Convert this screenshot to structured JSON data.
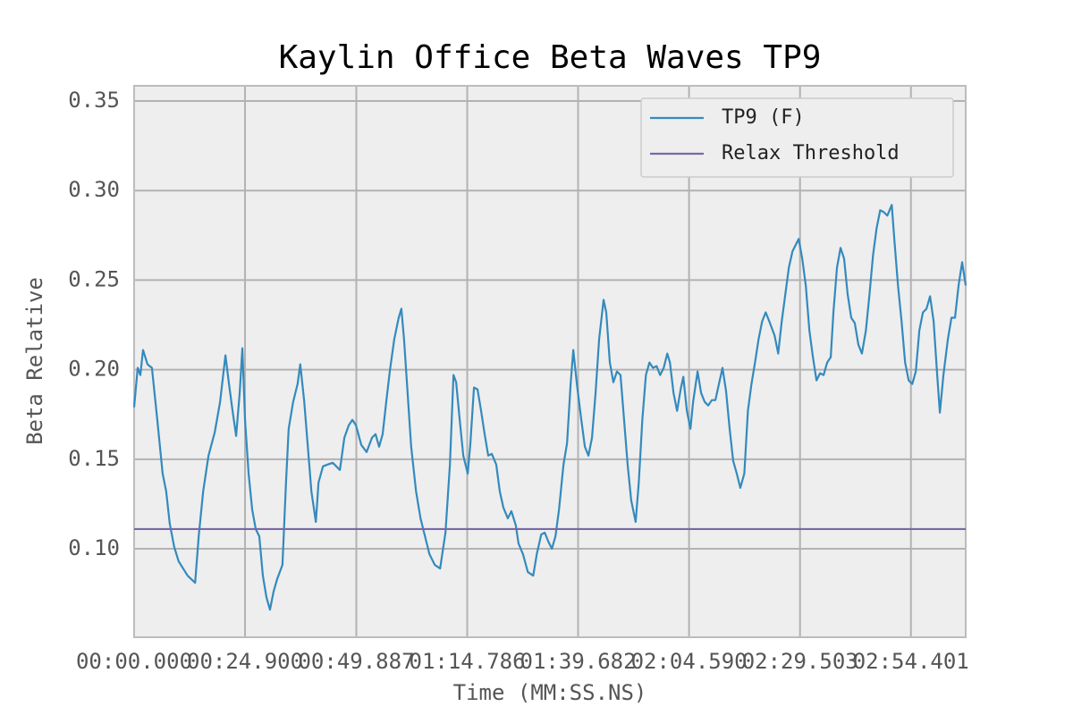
{
  "chart_data": {
    "type": "line",
    "title": "Kaylin Office Beta Waves TP9",
    "x_label": "Time (MM:SS.NS)",
    "y_label": "Beta Relative",
    "xlim": [
      0,
      186.7
    ],
    "ylim": [
      0.0506,
      0.3585
    ],
    "xticks": [
      {
        "value": 0,
        "label": "00:00.000"
      },
      {
        "value": 24.9,
        "label": "00:24.900"
      },
      {
        "value": 49.887,
        "label": "00:49.887"
      },
      {
        "value": 74.786,
        "label": "01:14.786"
      },
      {
        "value": 99.682,
        "label": "01:39.682"
      },
      {
        "value": 124.59,
        "label": "02:04.590"
      },
      {
        "value": 149.503,
        "label": "02:29.503"
      },
      {
        "value": 174.401,
        "label": "02:54.401"
      }
    ],
    "yticks": [
      {
        "value": 0.1,
        "label": "0.10"
      },
      0.15,
      {
        "value": 0.2,
        "label": "0.20"
      },
      0.25,
      {
        "value": 0.3,
        "label": "0.30"
      },
      0.35
    ],
    "grid": true,
    "legend": "upper right",
    "series": [
      {
        "name": "TP9 (F)",
        "color": "#348abd",
        "x": [
          0,
          0.8,
          1.4,
          2.0,
          3.0,
          4.0,
          5.2,
          6.4,
          7.2,
          8.0,
          9.0,
          10.0,
          11.0,
          12.0,
          13.7,
          14.5,
          15.5,
          16.7,
          18.1,
          19.3,
          20.5,
          21.3,
          22.1,
          22.9,
          23.7,
          24.3,
          24.9,
          25.7,
          26.5,
          27.3,
          28.1,
          28.9,
          29.7,
          30.5,
          31.3,
          32.1,
          33.3,
          34.1,
          34.7,
          35.7,
          36.7,
          37.3,
          38.2,
          39.0,
          39.8,
          40.8,
          41.4,
          42.4,
          43.4,
          44.6,
          46.2,
          47.2,
          48.2,
          49.0,
          49.8,
          51.0,
          52.2,
          53.4,
          54.2,
          55.0,
          55.8,
          56.6,
          57.4,
          58.4,
          59.4,
          60.0,
          60.6,
          61.4,
          62.2,
          63.3,
          64.3,
          65.3,
          66.3,
          67.5,
          68.7,
          69.9,
          70.9,
          71.7,
          72.3,
          73.1,
          73.9,
          74.9,
          75.5,
          76.3,
          77.1,
          77.9,
          78.7,
          79.5,
          80.3,
          81.3,
          82.1,
          82.9,
          83.9,
          84.7,
          85.7,
          86.3,
          87.3,
          88.4,
          89.6,
          90.4,
          91.4,
          92.2,
          93.0,
          93.8,
          94.6,
          95.4,
          96.4,
          97.2,
          98.0,
          98.6,
          99.4,
          100.4,
          101.2,
          102.0,
          102.8,
          103.6,
          104.4,
          105.4,
          106.0,
          106.8,
          107.6,
          108.4,
          109.2,
          110.0,
          110.8,
          111.6,
          112.6,
          113.3,
          114.1,
          114.9,
          115.7,
          116.5,
          117.3,
          118.1,
          118.9,
          119.7,
          120.3,
          121.1,
          121.9,
          122.7,
          123.3,
          124.1,
          124.9,
          125.5,
          126.5,
          127.3,
          128.1,
          128.9,
          129.7,
          130.5,
          131.3,
          132.1,
          132.9,
          133.7,
          134.5,
          135.3,
          136.1,
          137.0,
          137.8,
          138.6,
          139.4,
          140.2,
          141.0,
          141.8,
          142.6,
          143.8,
          144.6,
          145.4,
          146.2,
          147.0,
          147.8,
          149.2,
          150.0,
          150.8,
          151.6,
          152.4,
          153.2,
          154.0,
          154.8,
          155.6,
          156.4,
          157.0,
          157.8,
          158.6,
          159.4,
          160.2,
          161.0,
          161.8,
          162.6,
          163.4,
          164.3,
          165.1,
          165.9,
          166.7,
          167.5,
          168.3,
          169.1,
          170.1,
          170.7,
          171.5,
          172.3,
          173.1,
          173.9,
          174.7,
          175.5,
          176.3,
          177.1,
          177.9,
          178.7,
          179.5,
          180.3,
          180.9,
          181.7,
          182.7,
          183.5,
          184.3,
          185.1,
          185.9,
          186.7
        ],
        "values": [
          0.179,
          0.201,
          0.197,
          0.211,
          0.203,
          0.201,
          0.172,
          0.142,
          0.132,
          0.114,
          0.101,
          0.093,
          0.089,
          0.085,
          0.081,
          0.107,
          0.132,
          0.152,
          0.165,
          0.182,
          0.208,
          0.192,
          0.177,
          0.163,
          0.187,
          0.212,
          0.172,
          0.142,
          0.122,
          0.111,
          0.107,
          0.085,
          0.073,
          0.066,
          0.076,
          0.083,
          0.091,
          0.137,
          0.167,
          0.182,
          0.192,
          0.203,
          0.182,
          0.157,
          0.132,
          0.115,
          0.137,
          0.146,
          0.147,
          0.148,
          0.144,
          0.162,
          0.169,
          0.172,
          0.169,
          0.158,
          0.154,
          0.162,
          0.164,
          0.157,
          0.164,
          0.182,
          0.199,
          0.217,
          0.229,
          0.234,
          0.217,
          0.187,
          0.157,
          0.132,
          0.117,
          0.107,
          0.097,
          0.091,
          0.089,
          0.109,
          0.147,
          0.197,
          0.193,
          0.172,
          0.152,
          0.142,
          0.159,
          0.19,
          0.189,
          0.177,
          0.164,
          0.152,
          0.153,
          0.147,
          0.132,
          0.123,
          0.117,
          0.121,
          0.113,
          0.103,
          0.097,
          0.087,
          0.085,
          0.097,
          0.108,
          0.109,
          0.104,
          0.1,
          0.107,
          0.122,
          0.147,
          0.159,
          0.192,
          0.211,
          0.192,
          0.172,
          0.157,
          0.152,
          0.162,
          0.187,
          0.217,
          0.239,
          0.232,
          0.204,
          0.193,
          0.199,
          0.197,
          0.172,
          0.147,
          0.127,
          0.115,
          0.137,
          0.172,
          0.197,
          0.204,
          0.201,
          0.202,
          0.197,
          0.201,
          0.209,
          0.204,
          0.187,
          0.177,
          0.189,
          0.196,
          0.177,
          0.167,
          0.182,
          0.199,
          0.187,
          0.182,
          0.18,
          0.183,
          0.183,
          0.192,
          0.201,
          0.188,
          0.167,
          0.149,
          0.142,
          0.134,
          0.142,
          0.177,
          0.192,
          0.204,
          0.217,
          0.227,
          0.232,
          0.227,
          0.219,
          0.209,
          0.227,
          0.242,
          0.257,
          0.266,
          0.273,
          0.262,
          0.247,
          0.222,
          0.207,
          0.194,
          0.198,
          0.197,
          0.204,
          0.207,
          0.232,
          0.257,
          0.268,
          0.262,
          0.242,
          0.229,
          0.226,
          0.214,
          0.209,
          0.222,
          0.242,
          0.264,
          0.279,
          0.289,
          0.288,
          0.286,
          0.292,
          0.272,
          0.247,
          0.227,
          0.204,
          0.194,
          0.192,
          0.199,
          0.222,
          0.232,
          0.234,
          0.241,
          0.227,
          0.197,
          0.176,
          0.197,
          0.217,
          0.229,
          0.229,
          0.247,
          0.26,
          0.247
        ]
      },
      {
        "name": "Relax Threshold",
        "color": "#7a68a6",
        "x": [
          0,
          186.7
        ],
        "values": [
          0.111,
          0.111
        ]
      }
    ]
  }
}
